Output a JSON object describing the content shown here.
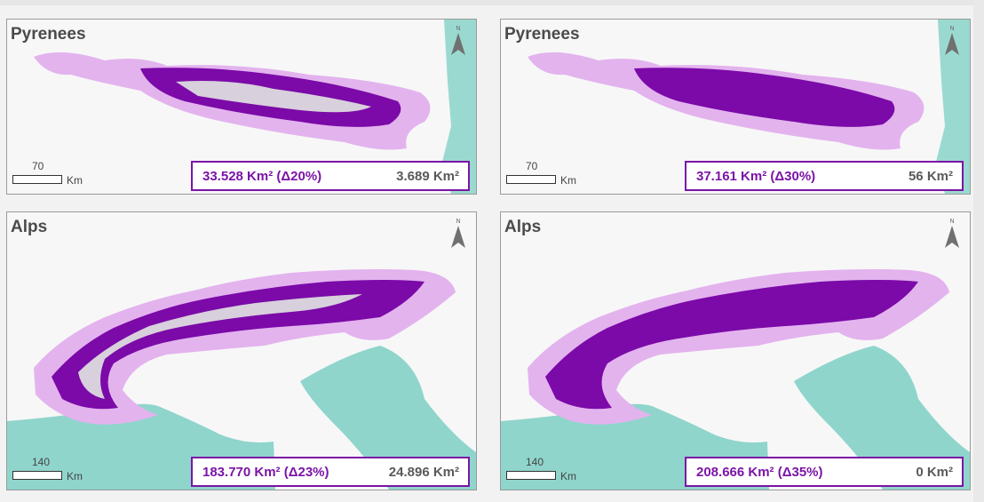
{
  "panels": [
    {
      "id": "tl",
      "title": "Pyrenees",
      "scale_value": "70",
      "scale_unit": "Km",
      "area_text": "33.528 Km² (Δ20%)",
      "loss_text": "3.689 Km²",
      "north_label": "N"
    },
    {
      "id": "tr",
      "title": "Pyrenees",
      "scale_value": "70",
      "scale_unit": "Km",
      "area_text": "37.161 Km² (Δ30%)",
      "loss_text": "56 Km²",
      "north_label": "N"
    },
    {
      "id": "bl",
      "title": "Alps",
      "scale_value": "140",
      "scale_unit": "Km",
      "area_text": "183.770 Km² (Δ23%)",
      "loss_text": "24.896 Km²",
      "north_label": "N"
    },
    {
      "id": "br",
      "title": "Alps",
      "scale_value": "140",
      "scale_unit": "Km",
      "area_text": "208.666 Km² (Δ35%)",
      "loss_text": "0 Km²",
      "north_label": "N"
    }
  ],
  "colors": {
    "buffer": "#e3b3ee",
    "range": "#7b0aa8",
    "sea": "#8fd5cc",
    "land": "#f7f7f7",
    "frame": "#7b14a6"
  }
}
